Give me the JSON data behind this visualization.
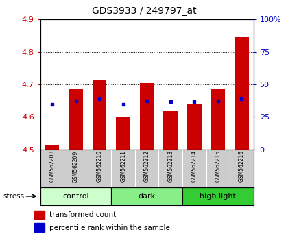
{
  "title": "GDS3933 / 249797_at",
  "samples": [
    "GSM562208",
    "GSM562209",
    "GSM562210",
    "GSM562211",
    "GSM562212",
    "GSM562213",
    "GSM562214",
    "GSM562215",
    "GSM562216"
  ],
  "red_values": [
    4.515,
    4.685,
    4.715,
    4.598,
    4.705,
    4.618,
    4.638,
    4.685,
    4.845
  ],
  "blue_values": [
    4.638,
    4.65,
    4.655,
    4.638,
    4.65,
    4.648,
    4.648,
    4.65,
    4.655
  ],
  "ylim": [
    4.5,
    4.9
  ],
  "y2lim": [
    0,
    100
  ],
  "yticks": [
    4.5,
    4.6,
    4.7,
    4.8,
    4.9
  ],
  "y2ticks": [
    0,
    25,
    50,
    75,
    100
  ],
  "y2ticklabels": [
    "0",
    "25",
    "50",
    "75",
    "100%"
  ],
  "groups": [
    {
      "label": "control",
      "start": 0,
      "end": 3,
      "color": "#ccffcc"
    },
    {
      "label": "dark",
      "start": 3,
      "end": 6,
      "color": "#88ee88"
    },
    {
      "label": "high light",
      "start": 6,
      "end": 9,
      "color": "#33cc33"
    }
  ],
  "bar_bottom": 4.5,
  "bar_width": 0.6,
  "red_color": "#cc0000",
  "blue_color": "#0000cc",
  "bg_color": "#ffffff",
  "sample_bg_color": "#cccccc",
  "stress_label": "stress",
  "legend_red": "transformed count",
  "legend_blue": "percentile rank within the sample"
}
